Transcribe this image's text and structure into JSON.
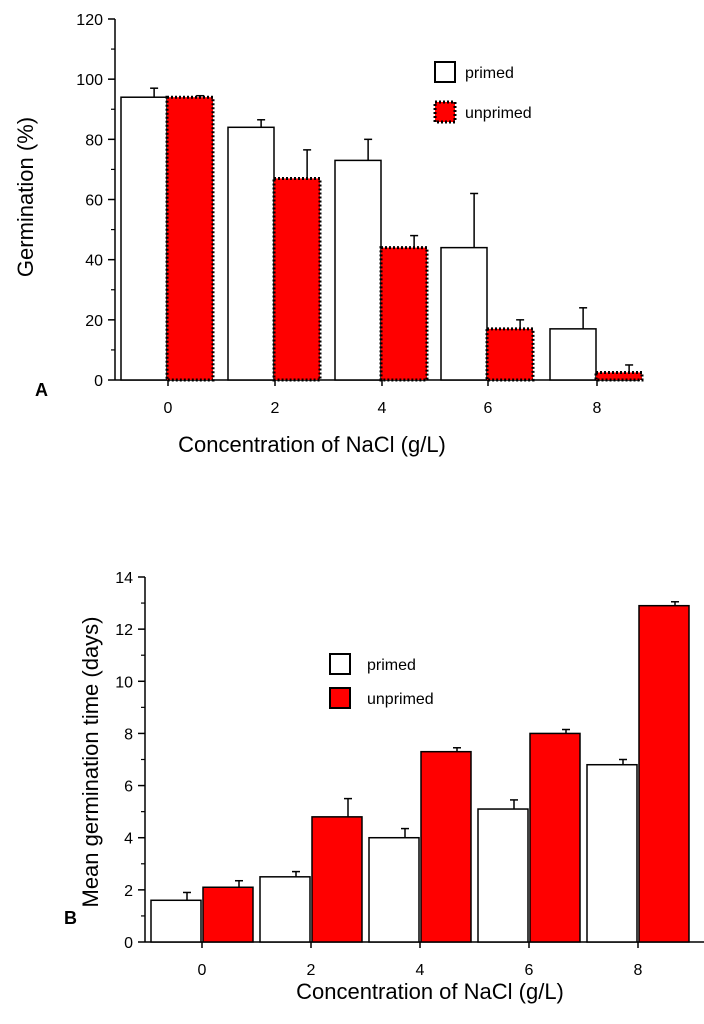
{
  "colors": {
    "primed_fill": "#ffffff",
    "unprimed_fill": "#ff0000",
    "stroke": "#000000"
  },
  "chart_data": [
    {
      "panel": "A",
      "type": "bar",
      "xlabel": "Concentration of NaCl (g/L)",
      "ylabel": "Germination (%)",
      "ylim": [
        0,
        120
      ],
      "yticks": [
        "0",
        "20",
        "40",
        "60",
        "80",
        "100",
        "120"
      ],
      "categories": [
        "0",
        "2",
        "4",
        "6",
        "8"
      ],
      "legend_position": "top-right",
      "series": [
        {
          "name": "primed",
          "values": [
            94,
            84,
            73,
            44,
            17
          ],
          "errors": [
            3,
            2.5,
            7,
            18,
            7
          ]
        },
        {
          "name": "unprimed",
          "values": [
            94,
            67,
            44,
            17,
            2.5
          ],
          "errors": [
            0.5,
            9.5,
            4,
            3,
            2.5
          ]
        }
      ]
    },
    {
      "panel": "B",
      "type": "bar",
      "xlabel": "Concentration of NaCl  (g/L)",
      "ylabel": "Mean germination time (days)",
      "ylim": [
        0,
        14
      ],
      "yticks": [
        "0",
        "2",
        "4",
        "6",
        "8",
        "10",
        "12",
        "14"
      ],
      "categories": [
        "0",
        "2",
        "4",
        "6",
        "8"
      ],
      "legend_position": "top-center",
      "series": [
        {
          "name": "primed",
          "values": [
            1.6,
            2.5,
            4.0,
            5.1,
            6.8
          ],
          "errors": [
            0.3,
            0.2,
            0.35,
            0.35,
            0.2
          ]
        },
        {
          "name": "unprimed",
          "values": [
            2.1,
            4.8,
            7.3,
            8.0,
            12.9
          ],
          "errors": [
            0.25,
            0.7,
            0.15,
            0.15,
            0.15
          ]
        }
      ]
    }
  ]
}
